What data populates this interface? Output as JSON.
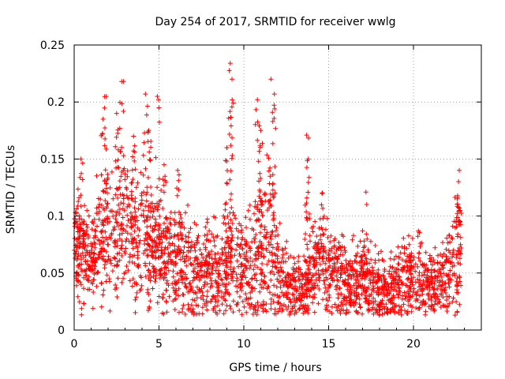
{
  "chart_data": {
    "type": "scatter",
    "title": "Day 254 of 2017, SRMTID for receiver wwlg",
    "xlabel": "GPS time / hours",
    "ylabel": "SRMTID / TECUs",
    "xlim": [
      0,
      24
    ],
    "ylim": [
      0,
      0.25
    ],
    "grid": true,
    "marker": "+",
    "marker_color": "#ff0000",
    "x_ticks": [
      0,
      5,
      10,
      15,
      20
    ],
    "x_tick_labels": [
      "0",
      "5",
      "10",
      "15",
      "20"
    ],
    "y_ticks": [
      0,
      0.05,
      0.1,
      0.15,
      0.2,
      0.25
    ],
    "y_tick_labels": [
      "0",
      "0.05",
      "0.1",
      "0.15",
      "0.2",
      "0.25"
    ],
    "data_x_range": [
      0,
      22.8
    ],
    "envelope": {
      "hours": [
        0,
        0.5,
        1,
        1.5,
        2,
        2.5,
        3,
        3.5,
        4,
        4.5,
        5,
        5.5,
        6,
        6.5,
        7,
        7.5,
        8,
        8.5,
        9,
        9.5,
        10,
        10.5,
        11,
        11.5,
        12,
        12.5,
        13,
        13.5,
        14,
        14.5,
        15,
        15.5,
        16,
        16.5,
        17,
        17.5,
        18,
        18.5,
        19,
        19.5,
        20,
        20.5,
        21,
        21.5,
        22,
        22.5,
        22.8
      ],
      "center": [
        0.08,
        0.07,
        0.06,
        0.075,
        0.085,
        0.08,
        0.09,
        0.085,
        0.08,
        0.07,
        0.07,
        0.065,
        0.06,
        0.06,
        0.055,
        0.05,
        0.055,
        0.05,
        0.06,
        0.065,
        0.06,
        0.055,
        0.065,
        0.07,
        0.05,
        0.04,
        0.035,
        0.035,
        0.045,
        0.06,
        0.055,
        0.05,
        0.045,
        0.04,
        0.045,
        0.04,
        0.035,
        0.035,
        0.04,
        0.045,
        0.05,
        0.045,
        0.04,
        0.04,
        0.045,
        0.06,
        0.07
      ],
      "spread": [
        0.025,
        0.03,
        0.02,
        0.035,
        0.04,
        0.035,
        0.04,
        0.035,
        0.04,
        0.035,
        0.035,
        0.03,
        0.03,
        0.03,
        0.03,
        0.028,
        0.03,
        0.03,
        0.035,
        0.035,
        0.03,
        0.035,
        0.04,
        0.04,
        0.03,
        0.02,
        0.02,
        0.02,
        0.025,
        0.03,
        0.028,
        0.025,
        0.025,
        0.022,
        0.025,
        0.022,
        0.02,
        0.02,
        0.022,
        0.025,
        0.025,
        0.025,
        0.02,
        0.02,
        0.022,
        0.03,
        0.035
      ]
    },
    "peaks": [
      {
        "x": 0.4,
        "y": 0.15
      },
      {
        "x": 1.7,
        "y": 0.185
      },
      {
        "x": 1.9,
        "y": 0.205
      },
      {
        "x": 2.5,
        "y": 0.19
      },
      {
        "x": 2.8,
        "y": 0.218
      },
      {
        "x": 3.5,
        "y": 0.17
      },
      {
        "x": 4.2,
        "y": 0.207
      },
      {
        "x": 4.4,
        "y": 0.175
      },
      {
        "x": 4.9,
        "y": 0.205
      },
      {
        "x": 5.3,
        "y": 0.145
      },
      {
        "x": 6.1,
        "y": 0.14
      },
      {
        "x": 9.0,
        "y": 0.16
      },
      {
        "x": 9.2,
        "y": 0.234
      },
      {
        "x": 9.3,
        "y": 0.22
      },
      {
        "x": 10.8,
        "y": 0.202
      },
      {
        "x": 11.0,
        "y": 0.175
      },
      {
        "x": 11.6,
        "y": 0.22
      },
      {
        "x": 11.8,
        "y": 0.207
      },
      {
        "x": 13.7,
        "y": 0.171
      },
      {
        "x": 13.8,
        "y": 0.15
      },
      {
        "x": 17.2,
        "y": 0.121
      },
      {
        "x": 22.7,
        "y": 0.14
      }
    ]
  }
}
